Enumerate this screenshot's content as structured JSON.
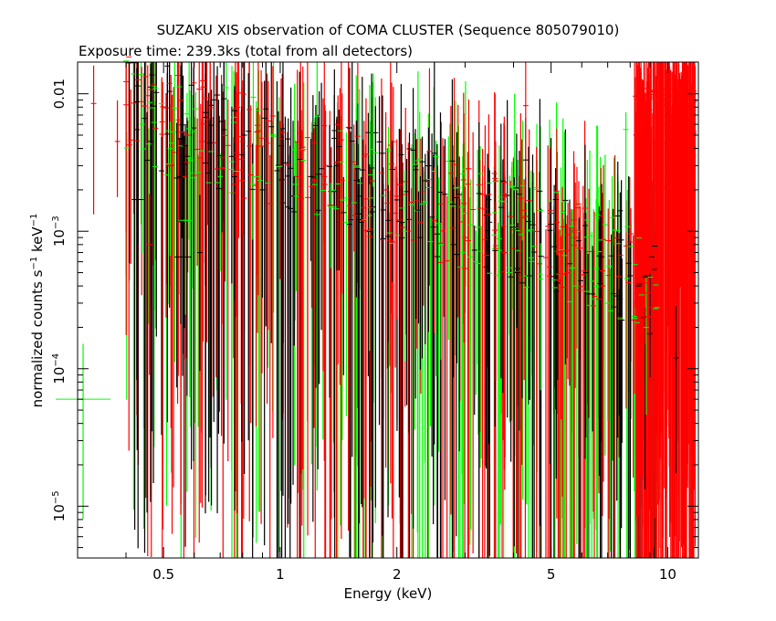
{
  "chart_data": {
    "type": "scatter",
    "title": "SUZAKU XIS observation of COMA CLUSTER (Sequence 805079010)",
    "subtitle": "Exposure time: 239.3ks (total from all detectors)",
    "xlabel": "Energy (keV)",
    "ylabel": {
      "base": "normalized counts s",
      "exp1": "−1",
      "mid": " keV",
      "exp2": "−1"
    },
    "x_scale": "log",
    "y_scale": "log",
    "xlim": [
      0.3,
      12.0
    ],
    "ylim": [
      4.2e-06,
      0.017
    ],
    "x_ticks": [
      {
        "value": 0.5,
        "label": "0.5"
      },
      {
        "value": 1,
        "label": "1"
      },
      {
        "value": 2,
        "label": "2"
      },
      {
        "value": 5,
        "label": "5"
      },
      {
        "value": 10,
        "label": "10"
      }
    ],
    "y_ticks": [
      {
        "value": 0.01,
        "label": "0.01"
      },
      {
        "value": 0.001,
        "label": "10",
        "exp": "−3"
      },
      {
        "value": 0.0001,
        "label": "10",
        "exp": "−4"
      },
      {
        "value": 1e-05,
        "label": "10",
        "exp": "−5"
      }
    ],
    "grid": false,
    "legend": "none",
    "series": [
      {
        "color": "#000000",
        "values": []
      },
      {
        "color": "#ff0000",
        "values": []
      },
      {
        "color": "#00ff00",
        "values": []
      }
    ],
    "sample_points": {
      "black": [
        {
          "x": 0.43,
          "y": 0.0017
        },
        {
          "x": 0.55,
          "y": 0.0025
        },
        {
          "x": 0.56,
          "y": 0.00065
        },
        {
          "x": 0.62,
          "y": 0.0007
        },
        {
          "x": 0.75,
          "y": 0.0035
        },
        {
          "x": 0.9,
          "y": 0.002
        },
        {
          "x": 1.05,
          "y": 0.0015
        },
        {
          "x": 1.2,
          "y": 0.0025
        },
        {
          "x": 1.4,
          "y": 0.003
        },
        {
          "x": 1.6,
          "y": 0.0018
        },
        {
          "x": 1.9,
          "y": 0.0012
        },
        {
          "x": 2.3,
          "y": 0.0009
        },
        {
          "x": 2.8,
          "y": 0.0008
        },
        {
          "x": 3.4,
          "y": 0.00055
        },
        {
          "x": 4.1,
          "y": 0.0005
        },
        {
          "x": 4.3,
          "y": 0.0033
        },
        {
          "x": 5.2,
          "y": 0.00042
        },
        {
          "x": 6.4,
          "y": 0.00035
        },
        {
          "x": 7.5,
          "y": 0.00025
        },
        {
          "x": 9.0,
          "y": 0.00018
        },
        {
          "x": 10.5,
          "y": 0.00012
        }
      ],
      "red": [
        {
          "x": 0.33,
          "y": 0.0085
        },
        {
          "x": 0.38,
          "y": 0.0045
        },
        {
          "x": 0.46,
          "y": 0.0008
        },
        {
          "x": 0.65,
          "y": 0.0065
        },
        {
          "x": 0.8,
          "y": 0.0045
        },
        {
          "x": 1.0,
          "y": 0.003
        },
        {
          "x": 1.3,
          "y": 0.0025
        },
        {
          "x": 1.55,
          "y": 0.0032
        },
        {
          "x": 2.0,
          "y": 0.0018
        },
        {
          "x": 2.5,
          "y": 0.0012
        },
        {
          "x": 3.0,
          "y": 0.0009
        },
        {
          "x": 3.6,
          "y": 0.00075
        },
        {
          "x": 4.3,
          "y": 0.0082
        },
        {
          "x": 5.5,
          "y": 0.0005
        },
        {
          "x": 6.8,
          "y": 0.0004
        },
        {
          "x": 8.5,
          "y": 0.003
        },
        {
          "x": 9.5,
          "y": 0.005
        },
        {
          "x": 10.5,
          "y": 0.006
        },
        {
          "x": 11.5,
          "y": 0.005
        }
      ],
      "green": [
        {
          "x": 0.31,
          "y": 6e-05
        },
        {
          "x": 0.44,
          "y": 0.006
        },
        {
          "x": 0.52,
          "y": 0.004
        },
        {
          "x": 0.57,
          "y": 0.0012
        },
        {
          "x": 0.7,
          "y": 0.0025
        },
        {
          "x": 0.85,
          "y": 0.0022
        },
        {
          "x": 1.1,
          "y": 0.0018
        },
        {
          "x": 1.35,
          "y": 0.0015
        },
        {
          "x": 1.7,
          "y": 0.0013
        },
        {
          "x": 2.1,
          "y": 0.001
        },
        {
          "x": 2.6,
          "y": 0.0008
        },
        {
          "x": 3.2,
          "y": 0.0006
        },
        {
          "x": 3.9,
          "y": 0.0005
        },
        {
          "x": 4.7,
          "y": 0.00045
        },
        {
          "x": 5.8,
          "y": 0.0004
        },
        {
          "x": 7.0,
          "y": 0.0003
        },
        {
          "x": 7.8,
          "y": 0.0055
        },
        {
          "x": 8.8,
          "y": 0.0002
        }
      ]
    }
  }
}
